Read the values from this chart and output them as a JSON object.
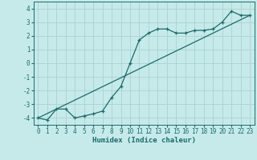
{
  "xlabel": "Humidex (Indice chaleur)",
  "bg_color": "#c6eaea",
  "grid_color": "#aed4d4",
  "line_color": "#1a6b6b",
  "xlim": [
    -0.5,
    23.5
  ],
  "ylim": [
    -4.5,
    4.5
  ],
  "yticks": [
    -4,
    -3,
    -2,
    -1,
    0,
    1,
    2,
    3,
    4
  ],
  "xticks": [
    0,
    1,
    2,
    3,
    4,
    5,
    6,
    7,
    8,
    9,
    10,
    11,
    12,
    13,
    14,
    15,
    16,
    17,
    18,
    19,
    20,
    21,
    22,
    23
  ],
  "curve_x": [
    0,
    1,
    2,
    3,
    4,
    5,
    6,
    7,
    8,
    9,
    10,
    11,
    12,
    13,
    14,
    15,
    16,
    17,
    18,
    19,
    20,
    21,
    22,
    23
  ],
  "curve_y": [
    -4.0,
    -4.15,
    -3.35,
    -3.35,
    -4.0,
    -3.85,
    -3.7,
    -3.5,
    -2.5,
    -1.7,
    0.0,
    1.7,
    2.2,
    2.5,
    2.5,
    2.2,
    2.2,
    2.4,
    2.4,
    2.5,
    3.0,
    3.8,
    3.5,
    3.5
  ],
  "line_x": [
    0,
    23
  ],
  "line_y": [
    -4.0,
    3.5
  ],
  "xlabel_fontsize": 6.5,
  "tick_fontsize": 5.5,
  "marker_size": 3.5,
  "lw": 0.9
}
